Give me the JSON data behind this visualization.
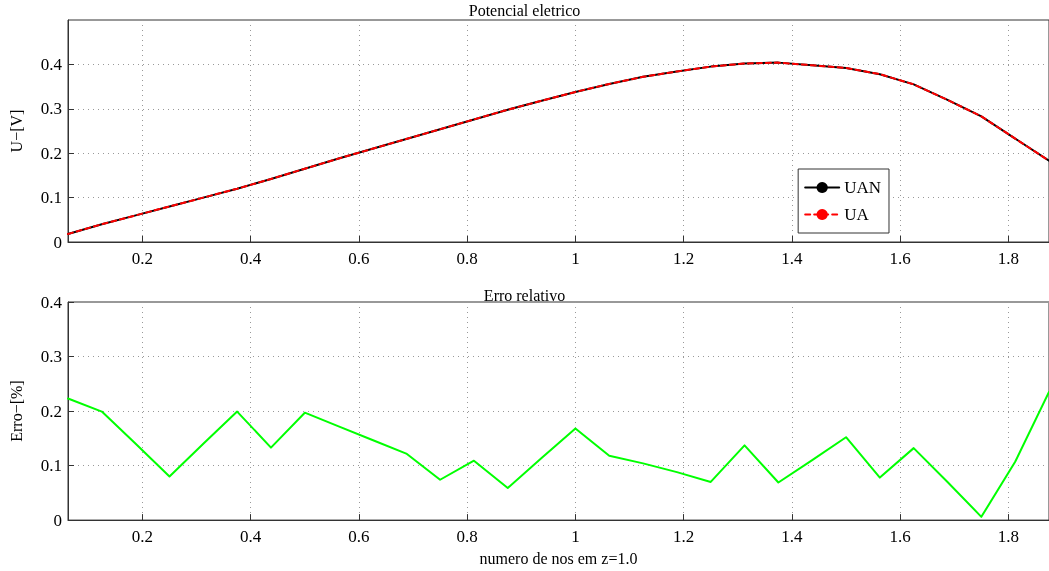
{
  "chart_data": [
    {
      "type": "line",
      "title": "Potencial eletrico",
      "ylabel": "U−[V]",
      "x": [
        0.0625,
        0.125,
        0.1875,
        0.25,
        0.3125,
        0.375,
        0.4375,
        0.5,
        0.5625,
        0.625,
        0.6875,
        0.75,
        0.8125,
        0.875,
        0.9375,
        1.0,
        1.0625,
        1.125,
        1.1875,
        1.25,
        1.3125,
        1.375,
        1.4375,
        1.5,
        1.5625,
        1.625,
        1.6875,
        1.75,
        1.8125,
        1.875
      ],
      "series": [
        {
          "name": "UAN",
          "color": "#000000",
          "line_style": "solid",
          "values": [
            0.018,
            0.04,
            0.06,
            0.08,
            0.1,
            0.12,
            0.142,
            0.165,
            0.188,
            0.21,
            0.232,
            0.254,
            0.276,
            0.298,
            0.318,
            0.338,
            0.356,
            0.372,
            0.384,
            0.395,
            0.402,
            0.404,
            0.398,
            0.392,
            0.378,
            0.355,
            0.32,
            0.283,
            0.233,
            0.183
          ]
        },
        {
          "name": "UA",
          "color": "#ff0000",
          "line_style": "dashed",
          "values": [
            0.018,
            0.04,
            0.06,
            0.08,
            0.1,
            0.12,
            0.142,
            0.165,
            0.188,
            0.21,
            0.232,
            0.254,
            0.276,
            0.298,
            0.318,
            0.338,
            0.356,
            0.372,
            0.384,
            0.395,
            0.402,
            0.404,
            0.398,
            0.392,
            0.378,
            0.355,
            0.32,
            0.283,
            0.233,
            0.183
          ]
        }
      ],
      "xlim": [
        0.0625,
        1.875
      ],
      "xticks": [
        0.2,
        0.4,
        0.6,
        0.8,
        1,
        1.2,
        1.4,
        1.6,
        1.8
      ],
      "ylim": [
        0,
        0.5
      ],
      "yticks": [
        0,
        0.1,
        0.2,
        0.3,
        0.4
      ],
      "grid": true,
      "legend": "bottom right",
      "marker": "none"
    },
    {
      "type": "line",
      "title": "Erro relativo",
      "xlabel": "numero de nos em z=1.0",
      "ylabel": "Erro−[%]",
      "x": [
        0.0625,
        0.125,
        0.1875,
        0.25,
        0.3125,
        0.375,
        0.4375,
        0.5,
        0.5625,
        0.625,
        0.6875,
        0.75,
        0.8125,
        0.875,
        0.9375,
        1.0,
        1.0625,
        1.125,
        1.1875,
        1.25,
        1.3125,
        1.375,
        1.4375,
        1.5,
        1.5625,
        1.625,
        1.6875,
        1.75,
        1.8125,
        1.875
      ],
      "series": [
        {
          "color": "#00ff00",
          "line_style": "solid",
          "values": [
            0.223,
            0.199,
            0.14,
            0.08,
            0.14,
            0.199,
            0.133,
            0.197,
            0.172,
            0.147,
            0.122,
            0.074,
            0.109,
            0.059,
            0.114,
            0.168,
            0.118,
            0.104,
            0.088,
            0.07,
            0.137,
            0.069,
            0.11,
            0.152,
            0.078,
            0.132,
            0.07,
            0.006,
            0.107,
            0.235
          ]
        }
      ],
      "xlim": [
        0.0625,
        1.875
      ],
      "xticks": [
        0.2,
        0.4,
        0.6,
        0.8,
        1,
        1.2,
        1.4,
        1.6,
        1.8
      ],
      "ylim": [
        0,
        0.4
      ],
      "yticks": [
        0,
        0.1,
        0.2,
        0.3,
        0.4
      ],
      "grid": true,
      "legend": false,
      "marker": "none"
    }
  ]
}
